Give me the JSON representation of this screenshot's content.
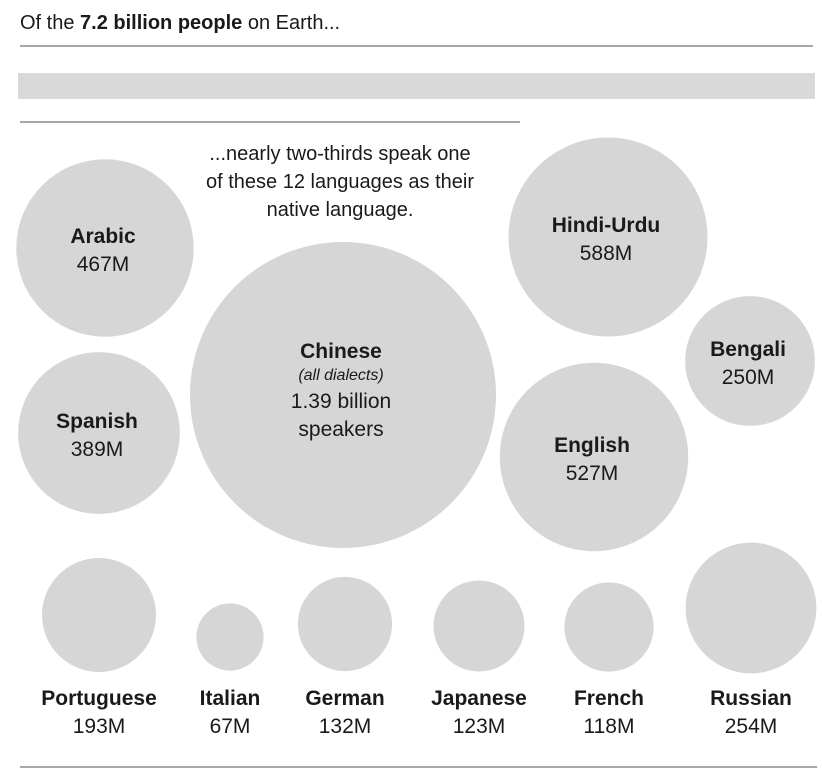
{
  "headline": {
    "prefix": "Of the ",
    "emphasis": "7.2 billion people",
    "suffix": " on Earth..."
  },
  "intro": {
    "lines": [
      "...nearly two-thirds speak one",
      "of these 12 languages as their",
      "native language."
    ]
  },
  "colors": {
    "bubble": "#d6d6d6",
    "text": "#1a1a1a",
    "rule": "#a8a8a8"
  },
  "chart_data": {
    "type": "bubble",
    "unit": "native speakers",
    "items": [
      {
        "name": "Chinese",
        "note": "(all dialects)",
        "label": "1.39 billion",
        "label2": "speakers",
        "value": 1390
      },
      {
        "name": "Hindi-Urdu",
        "label": "588M",
        "value": 588
      },
      {
        "name": "English",
        "label": "527M",
        "value": 527
      },
      {
        "name": "Arabic",
        "label": "467M",
        "value": 467
      },
      {
        "name": "Spanish",
        "label": "389M",
        "value": 389
      },
      {
        "name": "Russian",
        "label": "254M",
        "value": 254
      },
      {
        "name": "Bengali",
        "label": "250M",
        "value": 250
      },
      {
        "name": "Portuguese",
        "label": "193M",
        "value": 193
      },
      {
        "name": "German",
        "label": "132M",
        "value": 132
      },
      {
        "name": "Japanese",
        "label": "123M",
        "value": 123
      },
      {
        "name": "French",
        "label": "118M",
        "value": 118
      },
      {
        "name": "Italian",
        "label": "67M",
        "value": 67
      }
    ]
  }
}
